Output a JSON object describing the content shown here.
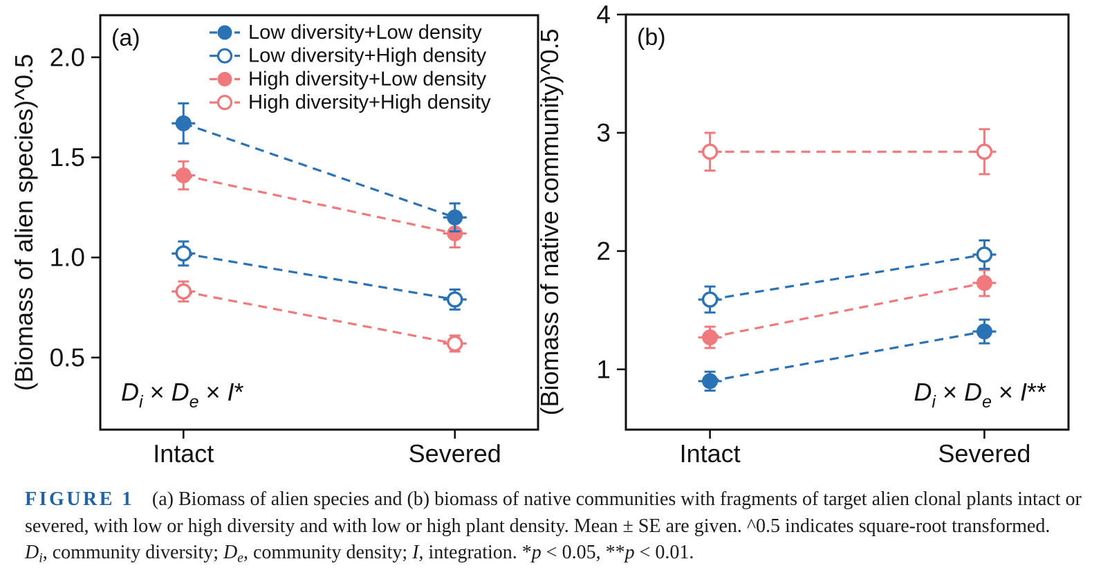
{
  "caption": {
    "label": "FIGURE 1",
    "label_color": "#2263a5",
    "line1": "(a) Biomass of alien species and (b) biomass of native communities with fragments of target alien clonal plants intact or",
    "line2": "severed, with low or high diversity and with low or high plant density. Mean ± SE are given. ^0.5 indicates square-root transformed.",
    "line3_segments": [
      {
        "text": "D",
        "italic": true
      },
      {
        "text": "i",
        "italic": true,
        "sub": true
      },
      {
        "text": ", community diversity; "
      },
      {
        "text": "D",
        "italic": true
      },
      {
        "text": "e",
        "italic": true,
        "sub": true
      },
      {
        "text": ", community density; "
      },
      {
        "text": "I",
        "italic": true
      },
      {
        "text": ", integration. *"
      },
      {
        "text": "p",
        "italic": true
      },
      {
        "text": " < 0.05, **"
      },
      {
        "text": "p",
        "italic": true
      },
      {
        "text": " < 0.01."
      }
    ]
  },
  "colors": {
    "blue": "#2b72b4",
    "pink": "#ef7a7d",
    "frame": "#111111"
  },
  "chart_data": [
    {
      "type": "line",
      "panel_label": "(a)",
      "ylabel": "(Biomass of alien species)^0.5",
      "categories": [
        "Intact",
        "Severed"
      ],
      "yticks": [
        0.5,
        1.0,
        1.5,
        2.0
      ],
      "ytick_labels": [
        "0.5",
        "1.0",
        "1.5",
        "2.0"
      ],
      "ylim": [
        0.14,
        2.21
      ],
      "grid": false,
      "legend_position": "top-inside",
      "annotation": {
        "text": "D_i × D_e × I*",
        "position": "bottom-left"
      },
      "series": [
        {
          "name": "Low diversity+Low density",
          "color_key": "blue",
          "marker": "filled",
          "values": [
            1.67,
            1.2
          ],
          "se": [
            0.1,
            0.07
          ]
        },
        {
          "name": "Low diversity+High density",
          "color_key": "blue",
          "marker": "open",
          "values": [
            1.02,
            0.79
          ],
          "se": [
            0.06,
            0.05
          ]
        },
        {
          "name": "High diversity+Low density",
          "color_key": "pink",
          "marker": "filled",
          "values": [
            1.41,
            1.12
          ],
          "se": [
            0.07,
            0.07
          ]
        },
        {
          "name": "High diversity+High density",
          "color_key": "pink",
          "marker": "open",
          "values": [
            0.83,
            0.57
          ],
          "se": [
            0.05,
            0.04
          ]
        }
      ]
    },
    {
      "type": "line",
      "panel_label": "(b)",
      "ylabel": "(Biomass of native community)^0.5",
      "categories": [
        "Intact",
        "Severed"
      ],
      "yticks": [
        1,
        2,
        3,
        4
      ],
      "ytick_labels": [
        "1",
        "2",
        "3",
        "4"
      ],
      "ylim": [
        0.49,
        4.0
      ],
      "grid": false,
      "legend_position": "none",
      "annotation": {
        "text": "D_i × D_e × I**",
        "position": "bottom-right"
      },
      "series": [
        {
          "name": "Low diversity+Low density",
          "color_key": "blue",
          "marker": "filled",
          "values": [
            0.9,
            1.32
          ],
          "se": [
            0.08,
            0.1
          ]
        },
        {
          "name": "Low diversity+High density",
          "color_key": "blue",
          "marker": "open",
          "values": [
            1.59,
            1.97
          ],
          "se": [
            0.11,
            0.12
          ]
        },
        {
          "name": "High diversity+Low density",
          "color_key": "pink",
          "marker": "filled",
          "values": [
            1.27,
            1.73
          ],
          "se": [
            0.09,
            0.11
          ]
        },
        {
          "name": "High diversity+High density",
          "color_key": "pink",
          "marker": "open",
          "values": [
            2.84,
            2.84
          ],
          "se": [
            0.16,
            0.19
          ]
        }
      ]
    }
  ]
}
